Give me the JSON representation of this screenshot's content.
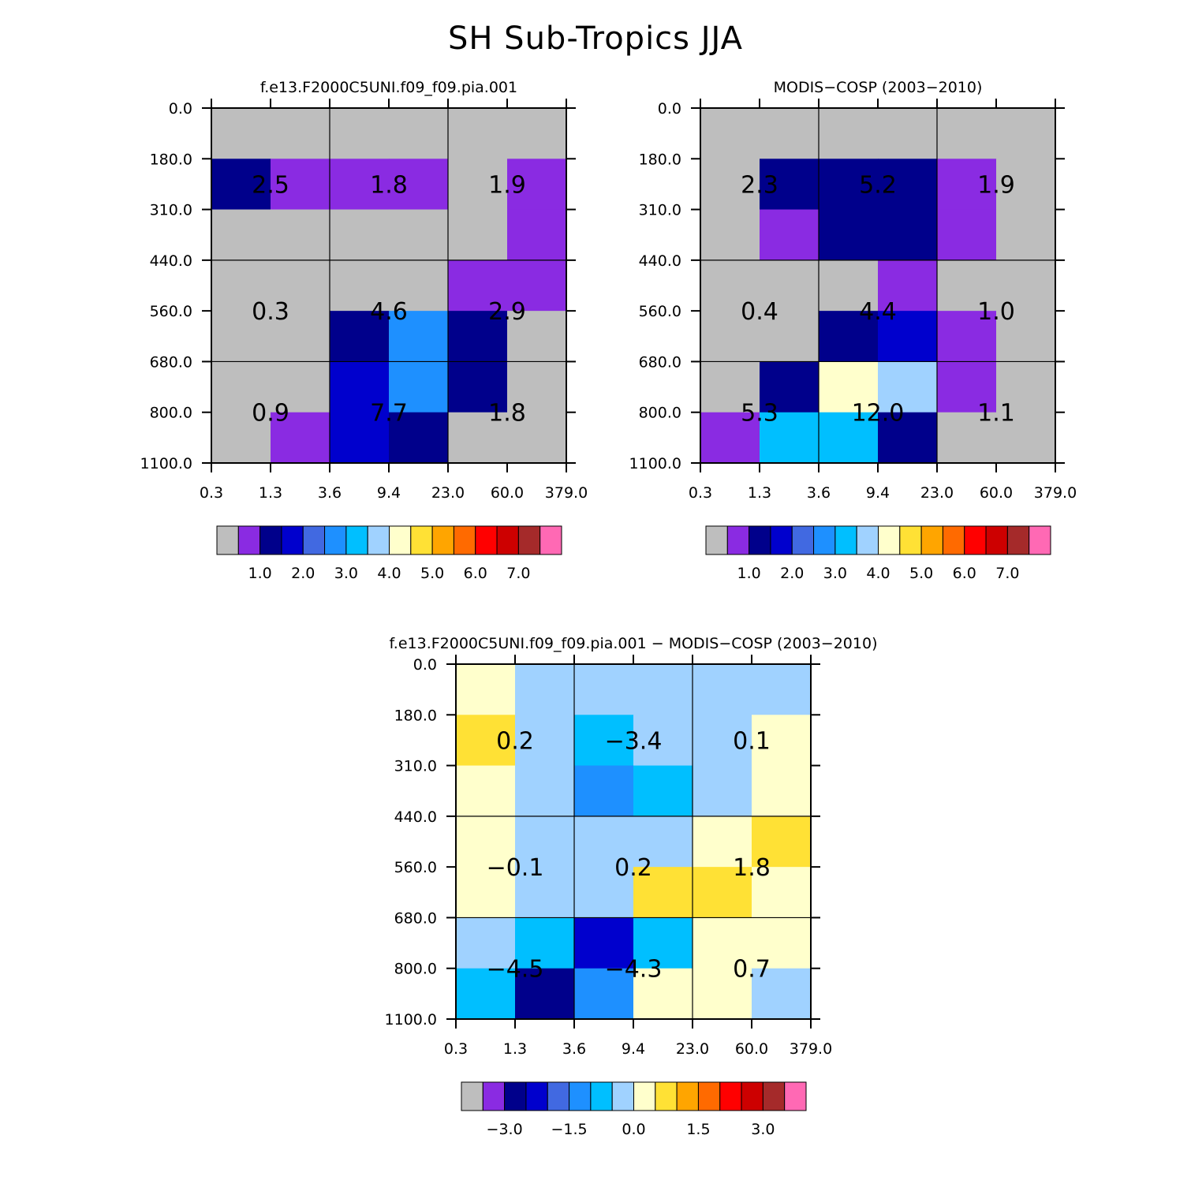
{
  "title": "SH Sub-Tropics JJA",
  "colors": {
    "mean_palette": [
      "#bebebe",
      "#8a2be2",
      "#00008b",
      "#0000cd",
      "#4169e1",
      "#1e90ff",
      "#00bfff",
      "#a0d2ff",
      "#ffffcc",
      "#ffe135",
      "#ffa500",
      "#ff6a00",
      "#ff0000",
      "#cd0000",
      "#a52a2a",
      "#ff69b4"
    ],
    "diff_palette": [
      "#bebebe",
      "#8a2be2",
      "#00008b",
      "#0000cd",
      "#4169e1",
      "#1e90ff",
      "#00bfff",
      "#a0d2ff",
      "#ffffcc",
      "#ffe135",
      "#ffa500",
      "#ff6a00",
      "#ff0000",
      "#cd0000",
      "#a52a2a",
      "#ff69b4"
    ]
  },
  "chart_data": [
    {
      "type": "heatmap",
      "id": "model",
      "title": "f.e13.F2000C5UNI.f09_f09.pia.001",
      "x_tick_labels": [
        "0.3",
        "1.3",
        "3.6",
        "9.4",
        "23.0",
        "60.0",
        "379.0"
      ],
      "y_tick_labels": [
        "0.0",
        "180.0",
        "310.0",
        "440.0",
        "560.0",
        "680.0",
        "800.0",
        "1100.0"
      ],
      "cell_class_rows": [
        [
          0,
          0,
          0,
          0,
          0,
          0
        ],
        [
          2,
          1,
          1,
          1,
          0,
          1
        ],
        [
          0,
          0,
          0,
          0,
          0,
          1
        ],
        [
          0,
          0,
          0,
          0,
          1,
          1
        ],
        [
          0,
          0,
          2,
          5,
          2,
          0
        ],
        [
          0,
          0,
          3,
          5,
          2,
          0
        ],
        [
          0,
          1,
          3,
          2,
          0,
          0
        ]
      ],
      "box_values": [
        [
          "2.5",
          "1.8",
          "1.9"
        ],
        [
          "0.3",
          "4.6",
          "2.9"
        ],
        [
          "0.9",
          "7.7",
          "1.8"
        ]
      ],
      "colorbar_labels": [
        "1.0",
        "2.0",
        "3.0",
        "4.0",
        "5.0",
        "6.0",
        "7.0"
      ]
    },
    {
      "type": "heatmap",
      "id": "obs",
      "title": "MODIS-COSP (2003-2010)",
      "x_tick_labels": [
        "0.3",
        "1.3",
        "3.6",
        "9.4",
        "23.0",
        "60.0",
        "379.0"
      ],
      "y_tick_labels": [
        "0.0",
        "180.0",
        "310.0",
        "440.0",
        "560.0",
        "680.0",
        "800.0",
        "1100.0"
      ],
      "cell_class_rows": [
        [
          0,
          0,
          0,
          0,
          0,
          0
        ],
        [
          0,
          2,
          2,
          2,
          1,
          0
        ],
        [
          0,
          1,
          2,
          2,
          1,
          0
        ],
        [
          0,
          0,
          0,
          1,
          0,
          0
        ],
        [
          0,
          0,
          2,
          3,
          1,
          0
        ],
        [
          0,
          2,
          8,
          7,
          1,
          0
        ],
        [
          1,
          6,
          6,
          2,
          0,
          0
        ]
      ],
      "box_values": [
        [
          "2.3",
          "5.2",
          "1.9"
        ],
        [
          "0.4",
          "4.4",
          "1.0"
        ],
        [
          "5.3",
          "12.0",
          "1.1"
        ]
      ],
      "colorbar_labels": [
        "1.0",
        "2.0",
        "3.0",
        "4.0",
        "5.0",
        "6.0",
        "7.0"
      ]
    },
    {
      "type": "heatmap",
      "id": "diff",
      "title": "f.e13.F2000C5UNI.f09_f09.pia.001 - MODIS-COSP (2003-2010)",
      "x_tick_labels": [
        "0.3",
        "1.3",
        "3.6",
        "9.4",
        "23.0",
        "60.0",
        "379.0"
      ],
      "y_tick_labels": [
        "0.0",
        "180.0",
        "310.0",
        "440.0",
        "560.0",
        "680.0",
        "800.0",
        "1100.0"
      ],
      "cell_class_rows": [
        [
          8,
          7,
          7,
          7,
          7,
          7
        ],
        [
          9,
          7,
          6,
          7,
          7,
          8
        ],
        [
          8,
          7,
          5,
          6,
          7,
          8
        ],
        [
          8,
          7,
          7,
          7,
          8,
          9
        ],
        [
          8,
          7,
          7,
          9,
          9,
          8
        ],
        [
          7,
          6,
          3,
          6,
          8,
          8
        ],
        [
          6,
          2,
          5,
          8,
          8,
          7
        ]
      ],
      "box_values": [
        [
          "0.2",
          "-3.4",
          "0.1"
        ],
        [
          "-0.1",
          "0.2",
          "1.8"
        ],
        [
          "-4.5",
          "-4.3",
          "0.7"
        ]
      ],
      "colorbar_labels": [
        "-3.0",
        "-1.5",
        "0.0",
        "1.5",
        "3.0"
      ]
    }
  ]
}
